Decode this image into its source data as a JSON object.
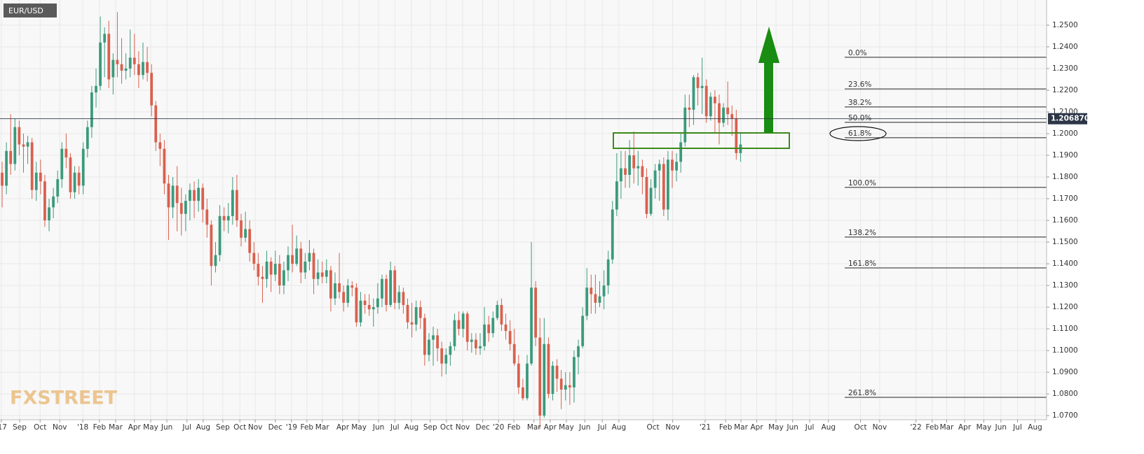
{
  "chart_data": {
    "type": "candlestick",
    "title": "EUR/USD",
    "watermark": "FXSTREET",
    "up_color": "#3a9a7c",
    "down_color": "#d9604e",
    "grid": true,
    "xlim": [
      -0.5,
      244.7
    ],
    "ylim": [
      1.0681,
      1.2616
    ],
    "xticks": [
      {
        "value": -0.2,
        "label": "'17"
      },
      {
        "value": 4.1,
        "label": "Sep"
      },
      {
        "value": 8.9,
        "label": "Oct"
      },
      {
        "value": 13.5,
        "label": "Nov"
      },
      {
        "value": 18.9,
        "label": "'18"
      },
      {
        "value": 22.8,
        "label": "Feb"
      },
      {
        "value": 26.6,
        "label": "Mar"
      },
      {
        "value": 31.0,
        "label": "Apr"
      },
      {
        "value": 34.8,
        "label": "May"
      },
      {
        "value": 38.6,
        "label": "Jun"
      },
      {
        "value": 43.3,
        "label": "Jul"
      },
      {
        "value": 47.1,
        "label": "Aug"
      },
      {
        "value": 51.7,
        "label": "Sep"
      },
      {
        "value": 55.7,
        "label": "Oct"
      },
      {
        "value": 59.3,
        "label": "Nov"
      },
      {
        "value": 64.0,
        "label": "Dec"
      },
      {
        "value": 67.8,
        "label": "'19"
      },
      {
        "value": 71.4,
        "label": "Feb"
      },
      {
        "value": 75.0,
        "label": "Mar"
      },
      {
        "value": 79.8,
        "label": "Apr"
      },
      {
        "value": 83.6,
        "label": "May"
      },
      {
        "value": 88.2,
        "label": "Jun"
      },
      {
        "value": 92.0,
        "label": "Jul"
      },
      {
        "value": 95.9,
        "label": "Aug"
      },
      {
        "value": 100.3,
        "label": "Sep"
      },
      {
        "value": 104.1,
        "label": "Oct"
      },
      {
        "value": 107.9,
        "label": "Nov"
      },
      {
        "value": 112.6,
        "label": "Dec"
      },
      {
        "value": 116.3,
        "label": "'20"
      },
      {
        "value": 119.9,
        "label": "Feb"
      },
      {
        "value": 124.6,
        "label": "Mar"
      },
      {
        "value": 128.4,
        "label": "Apr"
      },
      {
        "value": 132.2,
        "label": "May"
      },
      {
        "value": 136.5,
        "label": "Jun"
      },
      {
        "value": 140.6,
        "label": "Jul"
      },
      {
        "value": 144.5,
        "label": "Aug"
      },
      {
        "value": 152.5,
        "label": "Oct"
      },
      {
        "value": 157.1,
        "label": "Nov"
      },
      {
        "value": 164.7,
        "label": "'21"
      },
      {
        "value": 169.5,
        "label": "Feb"
      },
      {
        "value": 173.1,
        "label": "Mar"
      },
      {
        "value": 176.8,
        "label": "Apr"
      },
      {
        "value": 181.3,
        "label": "May"
      },
      {
        "value": 185.2,
        "label": "Jun"
      },
      {
        "value": 189.2,
        "label": "Jul"
      },
      {
        "value": 193.6,
        "label": "Aug"
      },
      {
        "value": 201.1,
        "label": "Oct"
      },
      {
        "value": 205.6,
        "label": "Nov"
      },
      {
        "value": 214.1,
        "label": "'22"
      },
      {
        "value": 217.9,
        "label": "Feb"
      },
      {
        "value": 221.3,
        "label": "Mar"
      },
      {
        "value": 225.5,
        "label": "Apr"
      },
      {
        "value": 230.0,
        "label": "May"
      },
      {
        "value": 234.0,
        "label": "Jun"
      },
      {
        "value": 237.9,
        "label": "Jul"
      },
      {
        "value": 242.0,
        "label": "Aug"
      }
    ],
    "yticks": [
      {
        "value": 1.07,
        "label": "1.0700"
      },
      {
        "value": 1.08,
        "label": "1.0800"
      },
      {
        "value": 1.09,
        "label": "1.0900"
      },
      {
        "value": 1.1,
        "label": "1.1000"
      },
      {
        "value": 1.11,
        "label": "1.1100"
      },
      {
        "value": 1.12,
        "label": "1.1200"
      },
      {
        "value": 1.13,
        "label": "1.1300"
      },
      {
        "value": 1.14,
        "label": "1.1400"
      },
      {
        "value": 1.15,
        "label": "1.1500"
      },
      {
        "value": 1.16,
        "label": "1.1600"
      },
      {
        "value": 1.17,
        "label": "1.1700"
      },
      {
        "value": 1.18,
        "label": "1.1800"
      },
      {
        "value": 1.19,
        "label": "1.1900"
      },
      {
        "value": 1.2,
        "label": "1.2000"
      },
      {
        "value": 1.21,
        "label": "1.2100"
      },
      {
        "value": 1.22,
        "label": "1.2200"
      },
      {
        "value": 1.23,
        "label": "1.2300"
      },
      {
        "value": 1.24,
        "label": "1.2400"
      },
      {
        "value": 1.25,
        "label": "1.2500"
      }
    ],
    "last_price": {
      "value": 1.20687,
      "label": "1.206870"
    },
    "fib_levels": [
      {
        "label": "0.0%",
        "value": 1.2352
      },
      {
        "label": "23.6%",
        "value": 1.2206
      },
      {
        "label": "38.2%",
        "value": 1.2123
      },
      {
        "label": "50.0%",
        "value": 1.2052
      },
      {
        "label": "61.8%",
        "value": 1.1981
      },
      {
        "label": "100.0%",
        "value": 1.1752
      },
      {
        "label": "138.2%",
        "value": 1.1523
      },
      {
        "label": "161.8%",
        "value": 1.1381
      },
      {
        "label": "261.8%",
        "value": 1.0784
      }
    ],
    "ohlc": [
      [
        1.182,
        1.187,
        1.166,
        1.176
      ],
      [
        1.176,
        1.196,
        1.172,
        1.192
      ],
      [
        1.192,
        1.209,
        1.181,
        1.186
      ],
      [
        1.186,
        1.207,
        1.183,
        1.203
      ],
      [
        1.203,
        1.206,
        1.19,
        1.195
      ],
      [
        1.195,
        1.2,
        1.182,
        1.194
      ],
      [
        1.194,
        1.199,
        1.186,
        1.196
      ],
      [
        1.196,
        1.198,
        1.17,
        1.174
      ],
      [
        1.174,
        1.187,
        1.169,
        1.182
      ],
      [
        1.182,
        1.188,
        1.172,
        1.178
      ],
      [
        1.178,
        1.181,
        1.157,
        1.16
      ],
      [
        1.16,
        1.17,
        1.155,
        1.166
      ],
      [
        1.166,
        1.175,
        1.161,
        1.171
      ],
      [
        1.171,
        1.183,
        1.168,
        1.179
      ],
      [
        1.179,
        1.196,
        1.175,
        1.193
      ],
      [
        1.193,
        1.2,
        1.184,
        1.189
      ],
      [
        1.189,
        1.191,
        1.17,
        1.173
      ],
      [
        1.173,
        1.185,
        1.17,
        1.182
      ],
      [
        1.182,
        1.185,
        1.172,
        1.176
      ],
      [
        1.176,
        1.196,
        1.172,
        1.193
      ],
      [
        1.193,
        1.206,
        1.189,
        1.203
      ],
      [
        1.203,
        1.222,
        1.198,
        1.219
      ],
      [
        1.219,
        1.23,
        1.212,
        1.222
      ],
      [
        1.222,
        1.254,
        1.22,
        1.242
      ],
      [
        1.242,
        1.249,
        1.226,
        1.246
      ],
      [
        1.246,
        1.252,
        1.221,
        1.225
      ],
      [
        1.226,
        1.237,
        1.218,
        1.234
      ],
      [
        1.234,
        1.256,
        1.226,
        1.232
      ],
      [
        1.232,
        1.244,
        1.223,
        1.229
      ],
      [
        1.229,
        1.237,
        1.225,
        1.23
      ],
      [
        1.23,
        1.248,
        1.226,
        1.235
      ],
      [
        1.235,
        1.246,
        1.227,
        1.232
      ],
      [
        1.232,
        1.238,
        1.221,
        1.227
      ],
      [
        1.227,
        1.242,
        1.225,
        1.233
      ],
      [
        1.233,
        1.24,
        1.224,
        1.228
      ],
      [
        1.228,
        1.232,
        1.208,
        1.213
      ],
      [
        1.213,
        1.215,
        1.192,
        1.196
      ],
      [
        1.196,
        1.2,
        1.185,
        1.193
      ],
      [
        1.193,
        1.197,
        1.172,
        1.177
      ],
      [
        1.177,
        1.181,
        1.151,
        1.166
      ],
      [
        1.166,
        1.18,
        1.161,
        1.176
      ],
      [
        1.176,
        1.185,
        1.155,
        1.168
      ],
      [
        1.168,
        1.175,
        1.153,
        1.163
      ],
      [
        1.163,
        1.172,
        1.155,
        1.169
      ],
      [
        1.169,
        1.177,
        1.16,
        1.174
      ],
      [
        1.174,
        1.178,
        1.161,
        1.169
      ],
      [
        1.169,
        1.179,
        1.164,
        1.175
      ],
      [
        1.175,
        1.177,
        1.159,
        1.165
      ],
      [
        1.165,
        1.17,
        1.152,
        1.158
      ],
      [
        1.158,
        1.16,
        1.13,
        1.139
      ],
      [
        1.139,
        1.15,
        1.136,
        1.144
      ],
      [
        1.144,
        1.167,
        1.141,
        1.162
      ],
      [
        1.162,
        1.166,
        1.155,
        1.16
      ],
      [
        1.16,
        1.168,
        1.154,
        1.162
      ],
      [
        1.162,
        1.18,
        1.158,
        1.174
      ],
      [
        1.174,
        1.181,
        1.157,
        1.16
      ],
      [
        1.16,
        1.163,
        1.148,
        1.152
      ],
      [
        1.152,
        1.164,
        1.15,
        1.156
      ],
      [
        1.156,
        1.16,
        1.141,
        1.145
      ],
      [
        1.145,
        1.15,
        1.137,
        1.14
      ],
      [
        1.14,
        1.145,
        1.13,
        1.134
      ],
      [
        1.134,
        1.139,
        1.122,
        1.133
      ],
      [
        1.133,
        1.146,
        1.129,
        1.141
      ],
      [
        1.141,
        1.143,
        1.127,
        1.135
      ],
      [
        1.135,
        1.146,
        1.132,
        1.14
      ],
      [
        1.14,
        1.144,
        1.126,
        1.13
      ],
      [
        1.13,
        1.141,
        1.126,
        1.137
      ],
      [
        1.137,
        1.148,
        1.132,
        1.144
      ],
      [
        1.144,
        1.158,
        1.136,
        1.14
      ],
      [
        1.14,
        1.153,
        1.139,
        1.147
      ],
      [
        1.147,
        1.15,
        1.131,
        1.136
      ],
      [
        1.136,
        1.145,
        1.133,
        1.141
      ],
      [
        1.141,
        1.151,
        1.137,
        1.145
      ],
      [
        1.145,
        1.147,
        1.126,
        1.133
      ],
      [
        1.133,
        1.142,
        1.13,
        1.136
      ],
      [
        1.136,
        1.141,
        1.131,
        1.134
      ],
      [
        1.134,
        1.142,
        1.131,
        1.137
      ],
      [
        1.137,
        1.139,
        1.118,
        1.124
      ],
      [
        1.124,
        1.136,
        1.121,
        1.131
      ],
      [
        1.131,
        1.145,
        1.124,
        1.127
      ],
      [
        1.127,
        1.13,
        1.118,
        1.122
      ],
      [
        1.122,
        1.133,
        1.12,
        1.13
      ],
      [
        1.13,
        1.132,
        1.125,
        1.129
      ],
      [
        1.129,
        1.131,
        1.111,
        1.113
      ],
      [
        1.113,
        1.127,
        1.111,
        1.123
      ],
      [
        1.123,
        1.126,
        1.117,
        1.121
      ],
      [
        1.121,
        1.126,
        1.116,
        1.119
      ],
      [
        1.119,
        1.124,
        1.111,
        1.12
      ],
      [
        1.12,
        1.131,
        1.117,
        1.124
      ],
      [
        1.124,
        1.135,
        1.12,
        1.133
      ],
      [
        1.133,
        1.135,
        1.118,
        1.121
      ],
      [
        1.121,
        1.141,
        1.12,
        1.137
      ],
      [
        1.137,
        1.139,
        1.119,
        1.122
      ],
      [
        1.122,
        1.13,
        1.119,
        1.127
      ],
      [
        1.127,
        1.129,
        1.117,
        1.121
      ],
      [
        1.121,
        1.124,
        1.11,
        1.113
      ],
      [
        1.113,
        1.122,
        1.106,
        1.112
      ],
      [
        1.112,
        1.123,
        1.109,
        1.12
      ],
      [
        1.12,
        1.123,
        1.11,
        1.115
      ],
      [
        1.115,
        1.117,
        1.093,
        1.098
      ],
      [
        1.098,
        1.108,
        1.095,
        1.105
      ],
      [
        1.105,
        1.111,
        1.093,
        1.107
      ],
      [
        1.107,
        1.11,
        1.095,
        1.101
      ],
      [
        1.101,
        1.104,
        1.088,
        1.094
      ],
      [
        1.094,
        1.101,
        1.089,
        1.098
      ],
      [
        1.098,
        1.104,
        1.093,
        1.102
      ],
      [
        1.102,
        1.117,
        1.1,
        1.114
      ],
      [
        1.114,
        1.118,
        1.107,
        1.11
      ],
      [
        1.11,
        1.118,
        1.106,
        1.117
      ],
      [
        1.117,
        1.118,
        1.1,
        1.104
      ],
      [
        1.104,
        1.108,
        1.099,
        1.105
      ],
      [
        1.105,
        1.108,
        1.098,
        1.101
      ],
      [
        1.101,
        1.108,
        1.098,
        1.102
      ],
      [
        1.102,
        1.12,
        1.1,
        1.112
      ],
      [
        1.112,
        1.116,
        1.104,
        1.108
      ],
      [
        1.108,
        1.118,
        1.106,
        1.115
      ],
      [
        1.115,
        1.123,
        1.114,
        1.121
      ],
      [
        1.121,
        1.124,
        1.109,
        1.112
      ],
      [
        1.112,
        1.117,
        1.105,
        1.109
      ],
      [
        1.109,
        1.114,
        1.1,
        1.103
      ],
      [
        1.103,
        1.11,
        1.093,
        1.094
      ],
      [
        1.094,
        1.098,
        1.08,
        1.083
      ],
      [
        1.083,
        1.087,
        1.077,
        1.078
      ],
      [
        1.078,
        1.098,
        1.077,
        1.094
      ],
      [
        1.094,
        1.15,
        1.093,
        1.129
      ],
      [
        1.129,
        1.132,
        1.102,
        1.106
      ],
      [
        1.106,
        1.115,
        1.064,
        1.07
      ],
      [
        1.07,
        1.115,
        1.069,
        1.103
      ],
      [
        1.103,
        1.106,
        1.078,
        1.08
      ],
      [
        1.08,
        1.095,
        1.077,
        1.093
      ],
      [
        1.093,
        1.096,
        1.081,
        1.087
      ],
      [
        1.087,
        1.091,
        1.073,
        1.082
      ],
      [
        1.082,
        1.09,
        1.077,
        1.084
      ],
      [
        1.084,
        1.09,
        1.075,
        1.083
      ],
      [
        1.083,
        1.1,
        1.076,
        1.097
      ],
      [
        1.097,
        1.105,
        1.089,
        1.102
      ],
      [
        1.102,
        1.12,
        1.101,
        1.116
      ],
      [
        1.116,
        1.138,
        1.114,
        1.129
      ],
      [
        1.129,
        1.135,
        1.117,
        1.126
      ],
      [
        1.126,
        1.135,
        1.117,
        1.122
      ],
      [
        1.122,
        1.132,
        1.12,
        1.125
      ],
      [
        1.125,
        1.137,
        1.119,
        1.13
      ],
      [
        1.13,
        1.146,
        1.126,
        1.142
      ],
      [
        1.142,
        1.169,
        1.14,
        1.165
      ],
      [
        1.165,
        1.191,
        1.162,
        1.178
      ],
      [
        1.178,
        1.192,
        1.17,
        1.184
      ],
      [
        1.184,
        1.192,
        1.175,
        1.181
      ],
      [
        1.181,
        1.197,
        1.175,
        1.19
      ],
      [
        1.19,
        1.201,
        1.177,
        1.184
      ],
      [
        1.184,
        1.192,
        1.176,
        1.185
      ],
      [
        1.185,
        1.188,
        1.172,
        1.18
      ],
      [
        1.18,
        1.184,
        1.161,
        1.163
      ],
      [
        1.163,
        1.179,
        1.162,
        1.175
      ],
      [
        1.175,
        1.186,
        1.17,
        1.183
      ],
      [
        1.183,
        1.188,
        1.169,
        1.186
      ],
      [
        1.186,
        1.189,
        1.162,
        1.165
      ],
      [
        1.165,
        1.192,
        1.16,
        1.188
      ],
      [
        1.188,
        1.192,
        1.175,
        1.183
      ],
      [
        1.183,
        1.191,
        1.178,
        1.187
      ],
      [
        1.187,
        1.2,
        1.182,
        1.196
      ],
      [
        1.196,
        1.218,
        1.194,
        1.212
      ],
      [
        1.212,
        1.218,
        1.203,
        1.211
      ],
      [
        1.211,
        1.227,
        1.204,
        1.226
      ],
      [
        1.226,
        1.228,
        1.213,
        1.221
      ],
      [
        1.221,
        1.235,
        1.209,
        1.222
      ],
      [
        1.222,
        1.225,
        1.205,
        1.208
      ],
      [
        1.208,
        1.219,
        1.206,
        1.217
      ],
      [
        1.217,
        1.22,
        1.2,
        1.214
      ],
      [
        1.214,
        1.218,
        1.195,
        1.205
      ],
      [
        1.205,
        1.214,
        1.203,
        1.212
      ],
      [
        1.212,
        1.224,
        1.204,
        1.209
      ],
      [
        1.209,
        1.213,
        1.199,
        1.207
      ],
      [
        1.207,
        1.211,
        1.188,
        1.191
      ],
      [
        1.191,
        1.2,
        1.187,
        1.195
      ]
    ]
  }
}
